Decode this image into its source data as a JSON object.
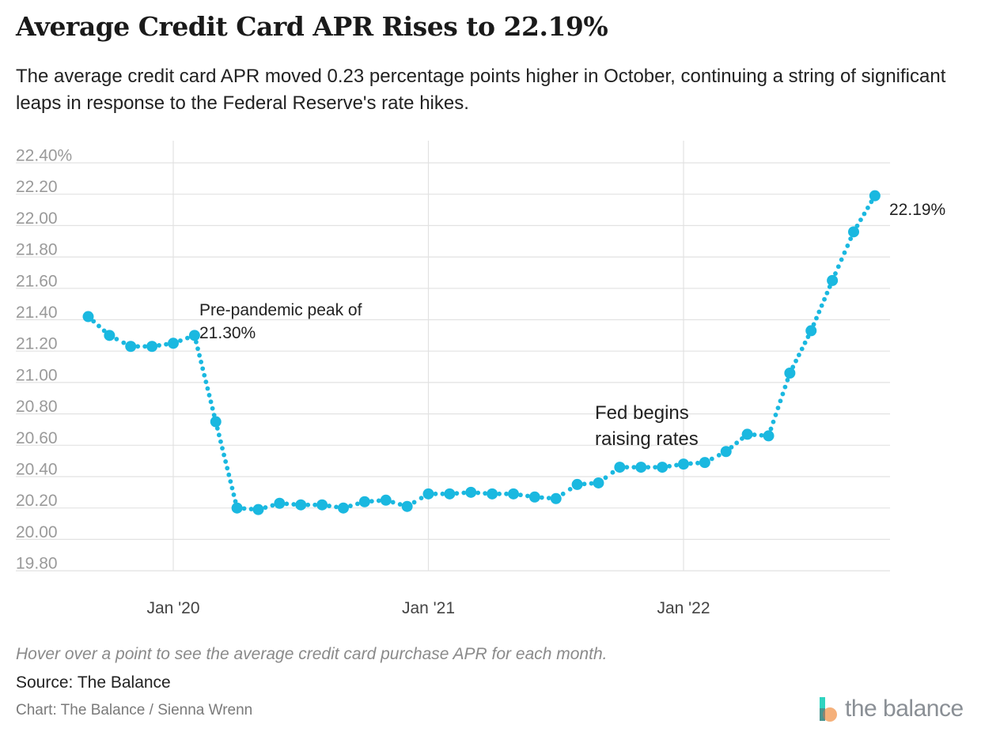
{
  "title": "Average Credit Card APR Rises to 22.19%",
  "subtitle": "The average credit card APR moved 0.23 percentage points higher in October, continuing a string of significant leaps in response to the Federal Reserve's rate hikes.",
  "note": "Hover over a point to see the average credit card purchase APR for each month.",
  "source": "Source: The Balance",
  "credit": "Chart: The Balance / Sienna Wrenn",
  "logo_text": "the balance",
  "colors": {
    "series": "#1ab8e0",
    "grid": "#e2e2e2",
    "tick": "#9a9a9a",
    "logo_teal": "#2fd4c0",
    "logo_orange": "#f4a76b"
  },
  "chart_data": {
    "type": "line",
    "title": "Average Credit Card APR Rises to 22.19%",
    "ylim": [
      19.8,
      22.4
    ],
    "y_ticks": [
      "22.40%",
      "22.20",
      "22.00",
      "21.80",
      "21.60",
      "21.40",
      "21.20",
      "21.00",
      "20.80",
      "20.60",
      "20.40",
      "20.20",
      "20.00",
      "19.80"
    ],
    "x_ticks": [
      "Jan '20",
      "Jan '21",
      "Jan '22"
    ],
    "grid": true,
    "series": [
      {
        "x": [
          "2019-09",
          "2019-10",
          "2019-11",
          "2019-12",
          "2020-01",
          "2020-02",
          "2020-03",
          "2020-04",
          "2020-05",
          "2020-06",
          "2020-07",
          "2020-08",
          "2020-09",
          "2020-10",
          "2020-11",
          "2020-12",
          "2021-01",
          "2021-02",
          "2021-03",
          "2021-04",
          "2021-05",
          "2021-06",
          "2021-07",
          "2021-08",
          "2021-09",
          "2021-10",
          "2021-11",
          "2021-12",
          "2022-01",
          "2022-02",
          "2022-03",
          "2022-04",
          "2022-05",
          "2022-06",
          "2022-07",
          "2022-08",
          "2022-09",
          "2022-10"
        ],
        "values": [
          21.42,
          21.3,
          21.23,
          21.23,
          21.25,
          21.3,
          20.75,
          20.2,
          20.19,
          20.23,
          20.22,
          20.22,
          20.2,
          20.24,
          20.25,
          20.21,
          20.29,
          20.29,
          20.3,
          20.29,
          20.29,
          20.27,
          20.26,
          20.35,
          20.36,
          20.46,
          20.46,
          20.46,
          20.48,
          20.49,
          20.56,
          20.67,
          20.66,
          21.06,
          21.33,
          21.65,
          21.96,
          22.19
        ]
      }
    ],
    "annotations": [
      {
        "text_line1": "Pre-pandemic peak of",
        "text_line2": "21.30%"
      },
      {
        "text_line1": "Fed begins",
        "text_line2": "raising rates"
      },
      {
        "text": "22.19%"
      }
    ]
  }
}
